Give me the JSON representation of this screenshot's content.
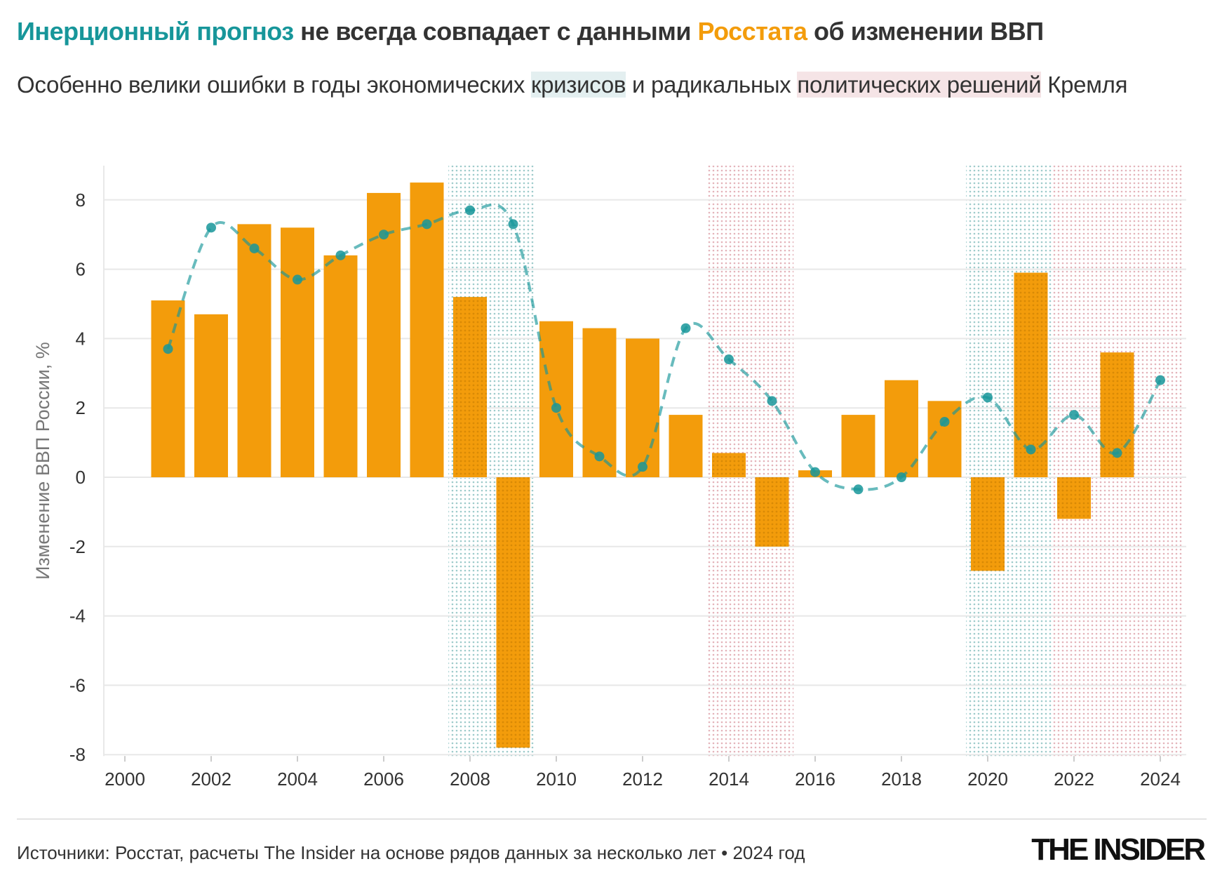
{
  "header": {
    "title_part1": "Инерционный прогноз",
    "title_part2": " не всегда совпадает с данными ",
    "title_part3": "Росстата",
    "title_part4": " об изменении ВВП",
    "subtitle_part1": "Особенно велики ошибки в годы экономических ",
    "subtitle_part2": "кризисов",
    "subtitle_part3": " и радикальных ",
    "subtitle_part4": "политических решений",
    "subtitle_part5": " Кремля"
  },
  "footer": {
    "source": "Источники: Росстат, расчеты The Insider на основе рядов данных за несколько лет • 2024 год",
    "logo": "THE INSIDER"
  },
  "colors": {
    "bar": "#f39c0b",
    "bar_dark": "#e08f06",
    "forecast": "#17969a",
    "crisis": "#9ecbcb",
    "political": "#e4b4ba"
  },
  "chart_data": {
    "type": "bar",
    "title": "Инерционный прогноз не всегда совпадает с данными Росстата об изменении ВВП",
    "xlabel": "",
    "ylabel": "Изменение ВВП России, %",
    "xlim": [
      2000,
      2024
    ],
    "ylim": [
      -8,
      9
    ],
    "xticks": [
      "2000",
      "2002",
      "2004",
      "2006",
      "2008",
      "2010",
      "2012",
      "2014",
      "2016",
      "2018",
      "2020",
      "2022",
      "2024"
    ],
    "yticks": [
      "8",
      "6",
      "4",
      "2",
      "0",
      "-2",
      "-4",
      "-6",
      "-8"
    ],
    "grid": true,
    "series": [
      {
        "name": "Росстат",
        "type": "bar",
        "x": [
          2001,
          2002,
          2003,
          2004,
          2005,
          2006,
          2007,
          2008,
          2009,
          2010,
          2011,
          2012,
          2013,
          2014,
          2015,
          2016,
          2017,
          2018,
          2019,
          2020,
          2021,
          2022,
          2023
        ],
        "values": [
          5.1,
          4.7,
          7.3,
          7.2,
          6.4,
          8.2,
          8.5,
          5.2,
          -7.8,
          4.5,
          4.3,
          4.0,
          1.8,
          0.7,
          -2.0,
          0.2,
          1.8,
          2.8,
          2.2,
          -2.7,
          5.9,
          -1.2,
          3.6
        ]
      },
      {
        "name": "Инерционный прогноз",
        "type": "line",
        "x": [
          2001,
          2002,
          2003,
          2004,
          2005,
          2006,
          2007,
          2008,
          2009,
          2010,
          2011,
          2012,
          2013,
          2014,
          2015,
          2016,
          2017,
          2018,
          2019,
          2020,
          2021,
          2022,
          2023,
          2024
        ],
        "values": [
          3.7,
          7.2,
          6.6,
          5.7,
          6.4,
          7.0,
          7.3,
          7.7,
          7.3,
          2.0,
          0.6,
          0.3,
          4.3,
          3.4,
          2.2,
          0.15,
          -0.35,
          0.0,
          1.6,
          2.3,
          0.8,
          1.8,
          0.7,
          2.8
        ]
      }
    ],
    "shaded_ranges": [
      {
        "kind": "crisis",
        "from": 2007.5,
        "to": 2009.5
      },
      {
        "kind": "political",
        "from": 2013.5,
        "to": 2015.5
      },
      {
        "kind": "crisis",
        "from": 2019.5,
        "to": 2021.5
      },
      {
        "kind": "political",
        "from": 2021.5,
        "to": 2024.5
      }
    ]
  }
}
